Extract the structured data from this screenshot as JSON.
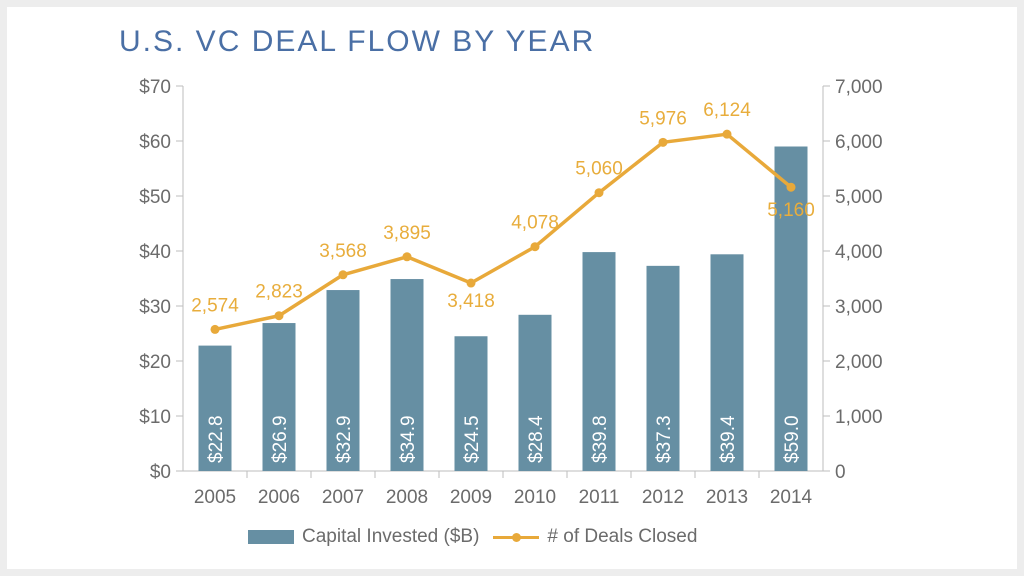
{
  "colors": {
    "bar": "#668fa3",
    "line": "#e8a93a",
    "title": "#4a6fa5",
    "axis": "#6b6b6b"
  },
  "chart_data": {
    "type": "bar",
    "title": "U.S. VC DEAL FLOW BY YEAR",
    "categories": [
      "2005",
      "2006",
      "2007",
      "2008",
      "2009",
      "2010",
      "2011",
      "2012",
      "2013",
      "2014"
    ],
    "series": [
      {
        "name": "Capital Invested ($B)",
        "type": "bar",
        "axis": "left",
        "values": [
          22.8,
          26.9,
          32.9,
          34.9,
          24.5,
          28.4,
          39.8,
          37.3,
          39.4,
          59.0
        ],
        "labels": [
          "$22.8",
          "$26.9",
          "$32.9",
          "$34.9",
          "$24.5",
          "$28.4",
          "$39.8",
          "$37.3",
          "$39.4",
          "$59.0"
        ]
      },
      {
        "name": "# of Deals Closed",
        "type": "line",
        "axis": "right",
        "values": [
          2574,
          2823,
          3568,
          3895,
          3418,
          4078,
          5060,
          5976,
          6124,
          5160
        ],
        "labels": [
          "2,574",
          "2,823",
          "3,568",
          "3,895",
          "3,418",
          "4,078",
          "5,060",
          "5,976",
          "6,124",
          "5,160"
        ]
      }
    ],
    "y_left": {
      "ticks": [
        "$0",
        "$10",
        "$20",
        "$30",
        "$40",
        "$50",
        "$60",
        "$70"
      ],
      "ylim": [
        0,
        70
      ]
    },
    "y_right": {
      "ticks": [
        "0",
        "1,000",
        "2,000",
        "3,000",
        "4,000",
        "5,000",
        "6,000",
        "7,000"
      ],
      "ylim": [
        0,
        7000
      ]
    },
    "legend_position": "bottom",
    "grid": false
  }
}
